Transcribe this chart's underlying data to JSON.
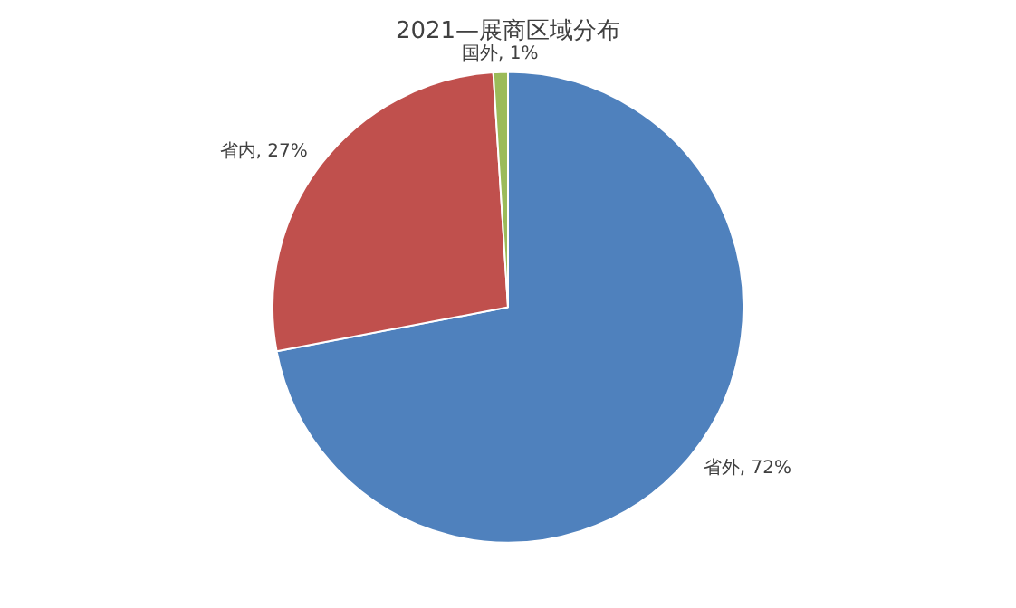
{
  "chart_data": {
    "type": "pie",
    "title": "2021—展商区域分布",
    "categories": [
      "省外",
      "省内",
      "国外"
    ],
    "values": [
      72,
      27,
      1
    ],
    "colors": [
      "#4f81bd",
      "#c0504d",
      "#9bbb59"
    ],
    "value_labels": [
      "72%",
      "27%",
      "1%"
    ],
    "legend": false
  }
}
